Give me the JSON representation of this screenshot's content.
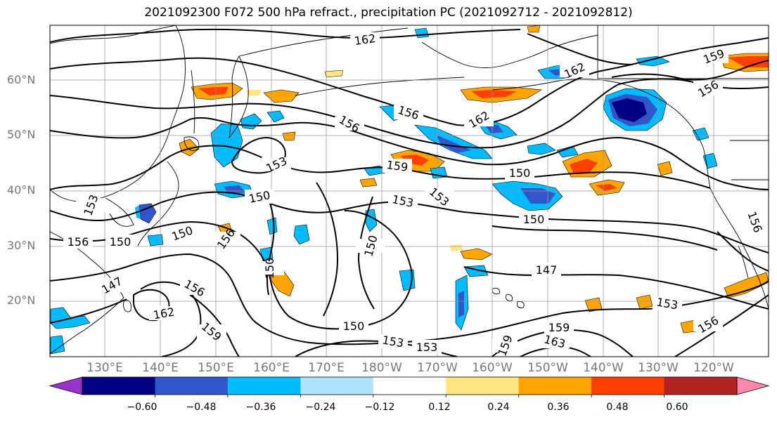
{
  "title": "2021092300 F072 500 hPa refract., precipitation PC (2021092712 - 2021092812)",
  "lat_labels": [
    "60°N",
    "50°N",
    "40°N",
    "30°N",
    "20°N"
  ],
  "lon_labels": [
    "130°E",
    "140°E",
    "150°E",
    "160°E",
    "170°E",
    "180°W",
    "170°W",
    "160°W",
    "150°W",
    "140°W",
    "130°W",
    "120°W"
  ],
  "contour_labels": [
    "162",
    "159",
    "162",
    "156",
    "156",
    "156",
    "162",
    "153",
    "159",
    "150",
    "150",
    "153",
    "153",
    "150",
    "150",
    "153",
    "150",
    "156",
    "156",
    "150",
    "147",
    "150",
    "147",
    "156",
    "162",
    "159",
    "150",
    "153",
    "153",
    "159",
    "153",
    "156",
    "163",
    "159",
    "156"
  ],
  "colorbar": {
    "ticks": [
      "−0.60",
      "−0.48",
      "−0.36",
      "−0.24",
      "−0.12",
      "0.12",
      "0.24",
      "0.36",
      "0.48",
      "0.60"
    ],
    "colors": [
      "#9a33cc",
      "#000080",
      "#3355cc",
      "#00bbff",
      "#b3e2ff",
      "#ffffff",
      "#ffe680",
      "#ffa500",
      "#ff4000",
      "#b22222",
      "#ff88aa"
    ]
  },
  "shading_colors": {
    "strong_negative": "#000080",
    "negative": "#3355cc",
    "moderate_negative": "#00bbff",
    "weak_negative": "#b3e2ff",
    "weak_positive": "#ffe680",
    "positive": "#ffa500",
    "strong_positive": "#ff4000"
  }
}
